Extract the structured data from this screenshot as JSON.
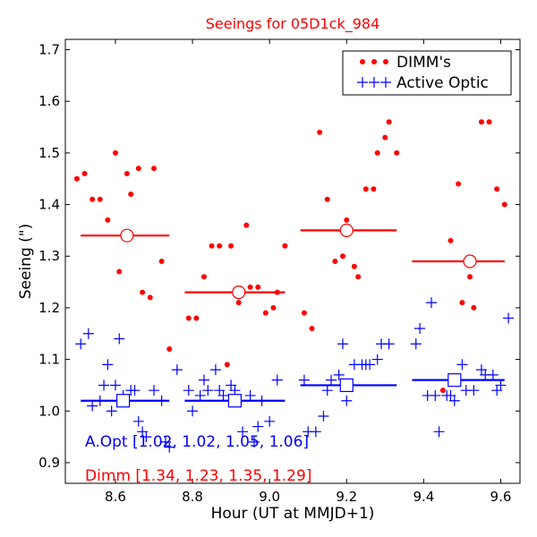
{
  "chart_data": {
    "type": "scatter",
    "title": "Seeings for 05D1ck_984",
    "xlabel": "Hour (UT at MMJD+1)",
    "ylabel": "Seeing (\")",
    "xlim": [
      8.47,
      9.65
    ],
    "ylim": [
      0.86,
      1.72
    ],
    "xticks": [
      8.6,
      8.8,
      9.0,
      9.2,
      9.4,
      9.6
    ],
    "yticks": [
      0.9,
      1.0,
      1.1,
      1.2,
      1.3,
      1.4,
      1.5,
      1.6,
      1.7
    ],
    "xtick_labels": [
      "8.6",
      "8.8",
      "9.0",
      "9.2",
      "9.4",
      "9.6"
    ],
    "ytick_labels": [
      "0.9",
      "1.0",
      "1.1",
      "1.2",
      "1.3",
      "1.4",
      "1.5",
      "1.6",
      "1.7"
    ],
    "colors": {
      "dimm": "#ff0000",
      "ao": "#0000ff",
      "title": "#ff0000"
    },
    "legend": {
      "location": "top-right",
      "entries": [
        {
          "label": "DIMM's",
          "color": "#ff0000",
          "marker": "dot"
        },
        {
          "label": "Active Optic",
          "color": "#0000ff",
          "marker": "plus"
        }
      ]
    },
    "annotations": {
      "ao_text": "A.Opt [1.02, 1.02, 1.05, 1.06]",
      "dimm_text": "Dimm [1.34, 1.23, 1.35, 1.29]"
    },
    "series": [
      {
        "name": "DIMM's",
        "marker": "dot",
        "color": "#ff0000",
        "points": [
          [
            8.5,
            1.45
          ],
          [
            8.52,
            1.46
          ],
          [
            8.54,
            1.41
          ],
          [
            8.56,
            1.41
          ],
          [
            8.58,
            1.37
          ],
          [
            8.6,
            1.5
          ],
          [
            8.61,
            1.27
          ],
          [
            8.63,
            1.46
          ],
          [
            8.64,
            1.42
          ],
          [
            8.66,
            1.47
          ],
          [
            8.67,
            1.23
          ],
          [
            8.69,
            1.22
          ],
          [
            8.7,
            1.47
          ],
          [
            8.72,
            1.29
          ],
          [
            8.74,
            1.12
          ],
          [
            8.79,
            1.18
          ],
          [
            8.81,
            1.18
          ],
          [
            8.83,
            1.26
          ],
          [
            8.85,
            1.32
          ],
          [
            8.87,
            1.32
          ],
          [
            8.89,
            1.09
          ],
          [
            8.9,
            1.32
          ],
          [
            8.92,
            1.21
          ],
          [
            8.94,
            1.36
          ],
          [
            8.95,
            1.24
          ],
          [
            8.97,
            1.24
          ],
          [
            8.99,
            1.19
          ],
          [
            9.01,
            1.2
          ],
          [
            9.02,
            1.23
          ],
          [
            9.04,
            1.32
          ],
          [
            9.09,
            1.19
          ],
          [
            9.11,
            1.16
          ],
          [
            9.13,
            1.54
          ],
          [
            9.15,
            1.41
          ],
          [
            9.17,
            1.29
          ],
          [
            9.19,
            1.3
          ],
          [
            9.2,
            1.37
          ],
          [
            9.22,
            1.28
          ],
          [
            9.23,
            1.26
          ],
          [
            9.25,
            1.43
          ],
          [
            9.27,
            1.43
          ],
          [
            9.28,
            1.5
          ],
          [
            9.3,
            1.53
          ],
          [
            9.31,
            1.56
          ],
          [
            9.33,
            1.5
          ],
          [
            9.45,
            1.04
          ],
          [
            9.47,
            1.33
          ],
          [
            9.49,
            1.44
          ],
          [
            9.5,
            1.21
          ],
          [
            9.52,
            1.26
          ],
          [
            9.53,
            1.2
          ],
          [
            9.55,
            1.56
          ],
          [
            9.57,
            1.56
          ],
          [
            9.59,
            1.43
          ],
          [
            9.61,
            1.4
          ]
        ]
      },
      {
        "name": "Active Optic",
        "marker": "plus",
        "color": "#0000ff",
        "points": [
          [
            8.51,
            1.13
          ],
          [
            8.53,
            1.15
          ],
          [
            8.54,
            1.01
          ],
          [
            8.56,
            1.02
          ],
          [
            8.57,
            1.05
          ],
          [
            8.58,
            1.09
          ],
          [
            8.59,
            1.0
          ],
          [
            8.6,
            1.05
          ],
          [
            8.61,
            1.14
          ],
          [
            8.62,
            1.03
          ],
          [
            8.64,
            1.04
          ],
          [
            8.65,
            1.04
          ],
          [
            8.66,
            0.98
          ],
          [
            8.67,
            0.96
          ],
          [
            8.68,
            0.95
          ],
          [
            8.7,
            1.04
          ],
          [
            8.72,
            1.02
          ],
          [
            8.73,
            0.94
          ],
          [
            8.74,
            0.93
          ],
          [
            8.76,
            1.08
          ],
          [
            8.79,
            1.04
          ],
          [
            8.8,
            1.0
          ],
          [
            8.82,
            1.03
          ],
          [
            8.83,
            1.06
          ],
          [
            8.84,
            1.04
          ],
          [
            8.86,
            1.08
          ],
          [
            8.87,
            1.04
          ],
          [
            8.88,
            1.03
          ],
          [
            8.9,
            1.05
          ],
          [
            8.91,
            1.04
          ],
          [
            8.93,
            0.96
          ],
          [
            8.95,
            1.03
          ],
          [
            8.96,
            0.94
          ],
          [
            8.97,
            0.97
          ],
          [
            8.98,
            1.02
          ],
          [
            9.0,
            0.98
          ],
          [
            9.02,
            1.06
          ],
          [
            9.09,
            1.06
          ],
          [
            9.1,
            0.96
          ],
          [
            9.12,
            0.96
          ],
          [
            9.14,
            0.99
          ],
          [
            9.15,
            1.04
          ],
          [
            9.16,
            1.06
          ],
          [
            9.18,
            1.07
          ],
          [
            9.19,
            1.13
          ],
          [
            9.2,
            1.02
          ],
          [
            9.21,
            1.05
          ],
          [
            9.22,
            1.09
          ],
          [
            9.24,
            1.09
          ],
          [
            9.25,
            1.09
          ],
          [
            9.26,
            1.09
          ],
          [
            9.28,
            1.1
          ],
          [
            9.29,
            1.13
          ],
          [
            9.31,
            1.13
          ],
          [
            9.38,
            1.13
          ],
          [
            9.39,
            1.16
          ],
          [
            9.41,
            1.03
          ],
          [
            9.42,
            1.21
          ],
          [
            9.43,
            1.03
          ],
          [
            9.44,
            0.96
          ],
          [
            9.46,
            1.03
          ],
          [
            9.47,
            1.03
          ],
          [
            9.48,
            1.02
          ],
          [
            9.5,
            1.09
          ],
          [
            9.51,
            1.04
          ],
          [
            9.53,
            1.04
          ],
          [
            9.55,
            1.08
          ],
          [
            9.56,
            1.07
          ],
          [
            9.58,
            1.07
          ],
          [
            9.59,
            1.04
          ],
          [
            9.6,
            1.05
          ],
          [
            9.62,
            1.18
          ]
        ]
      }
    ],
    "segments": [
      {
        "name": "DIMM mean",
        "color": "#ff0000",
        "items": [
          {
            "x0": 8.51,
            "x1": 8.74,
            "y": 1.34,
            "xc": 8.63
          },
          {
            "x0": 8.78,
            "x1": 9.04,
            "y": 1.23,
            "xc": 8.92
          },
          {
            "x0": 9.08,
            "x1": 9.33,
            "y": 1.35,
            "xc": 9.2
          },
          {
            "x0": 9.37,
            "x1": 9.61,
            "y": 1.29,
            "xc": 9.52
          }
        ]
      },
      {
        "name": "AO mean",
        "color": "#0000ff",
        "items": [
          {
            "x0": 8.51,
            "x1": 8.74,
            "y": 1.02,
            "xc": 8.62
          },
          {
            "x0": 8.78,
            "x1": 9.04,
            "y": 1.02,
            "xc": 8.91
          },
          {
            "x0": 9.08,
            "x1": 9.33,
            "y": 1.05,
            "xc": 9.2
          },
          {
            "x0": 9.37,
            "x1": 9.61,
            "y": 1.06,
            "xc": 9.48
          }
        ]
      }
    ]
  }
}
